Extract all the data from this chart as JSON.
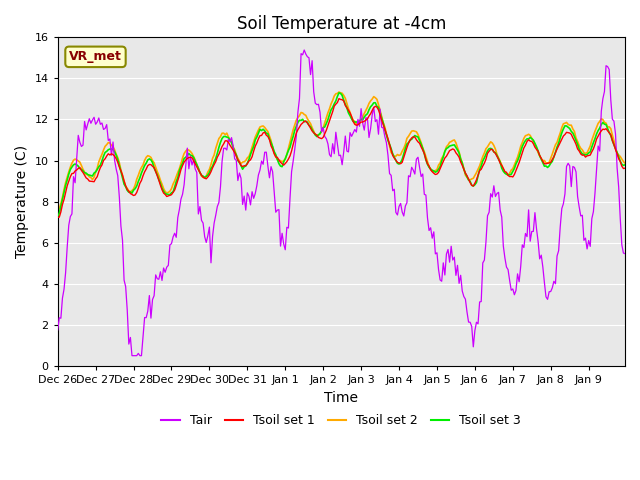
{
  "title": "Soil Temperature at -4cm",
  "xlabel": "Time",
  "ylabel": "Temperature (C)",
  "ylim": [
    0,
    16
  ],
  "yticks": [
    0,
    2,
    4,
    6,
    8,
    10,
    12,
    14,
    16
  ],
  "bg_color": "#e8e8e8",
  "legend_label": "VR_met",
  "line_colors": {
    "Tair": "#cc00ff",
    "Tsoil set 1": "#ff0000",
    "Tsoil set 2": "#ffaa00",
    "Tsoil set 3": "#00ee00"
  },
  "start_date": "2023-12-26",
  "n_points": 360,
  "interval_hours": 1
}
